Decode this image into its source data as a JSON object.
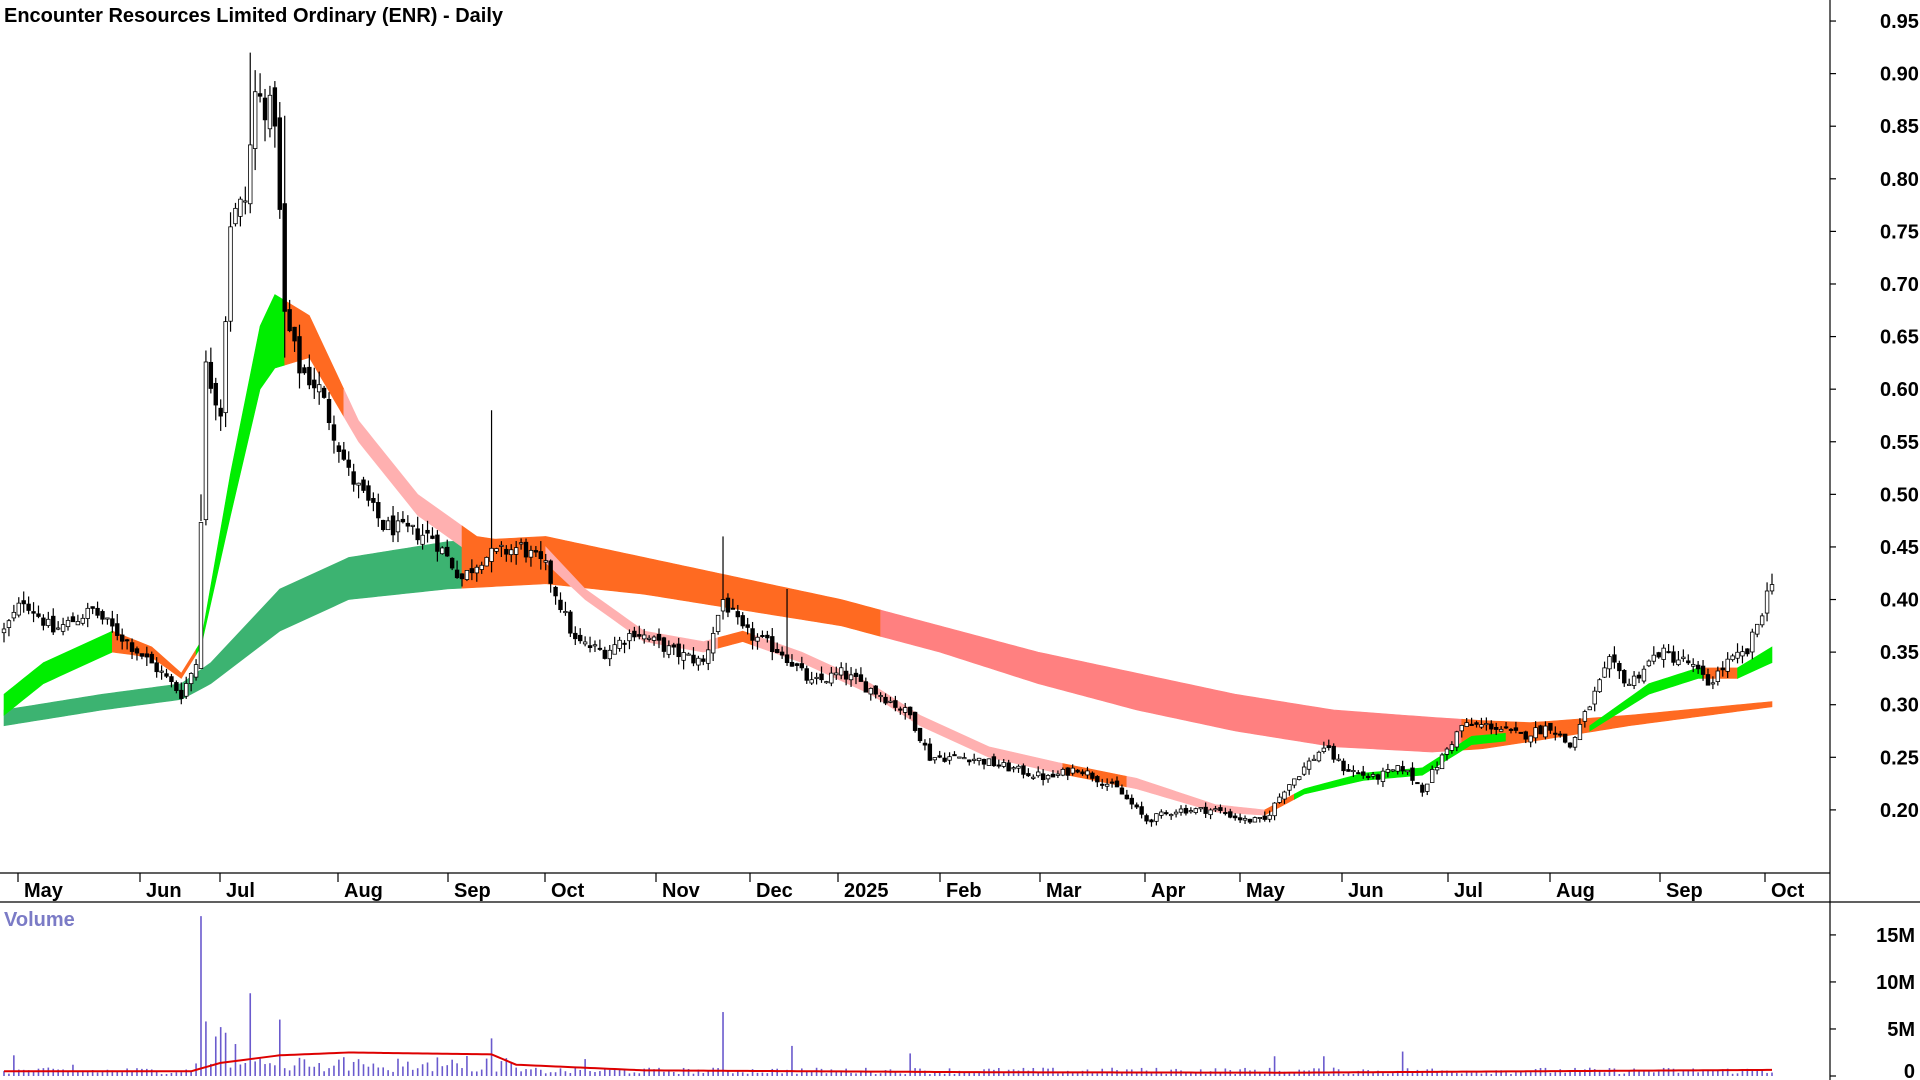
{
  "chart_data": [
    {
      "type": "candlestick",
      "title": "Encounter Resources Limited Ordinary (ENR) - Daily",
      "ylim": [
        0.14,
        0.97
      ],
      "yticks": [
        "0.95",
        "0.90",
        "0.85",
        "0.80",
        "0.75",
        "0.70",
        "0.65",
        "0.60",
        "0.55",
        "0.50",
        "0.45",
        "0.40",
        "0.35",
        "0.30",
        "0.25",
        "0.20"
      ],
      "xticks": [
        "May",
        "Jun",
        "Jul",
        "Aug",
        "Sep",
        "Oct",
        "Nov",
        "Dec",
        "2025",
        "Feb",
        "Mar",
        "Apr",
        "May",
        "Jun",
        "Jul",
        "Aug",
        "Sep",
        "Oct"
      ],
      "price_anchors": [
        {
          "x": 0,
          "c": 0.37
        },
        {
          "x": 4,
          "c": 0.4
        },
        {
          "x": 10,
          "c": 0.37
        },
        {
          "x": 18,
          "c": 0.39
        },
        {
          "x": 25,
          "c": 0.36
        },
        {
          "x": 32,
          "c": 0.33
        },
        {
          "x": 36,
          "c": 0.31
        },
        {
          "x": 39,
          "c": 0.34
        },
        {
          "x": 41,
          "c": 0.62
        },
        {
          "x": 44,
          "c": 0.58
        },
        {
          "x": 46,
          "c": 0.76
        },
        {
          "x": 49,
          "c": 0.78
        },
        {
          "x": 51,
          "c": 0.88
        },
        {
          "x": 55,
          "c": 0.86
        },
        {
          "x": 57,
          "c": 0.67
        },
        {
          "x": 60,
          "c": 0.62
        },
        {
          "x": 64,
          "c": 0.6
        },
        {
          "x": 70,
          "c": 0.52
        },
        {
          "x": 77,
          "c": 0.47
        },
        {
          "x": 87,
          "c": 0.46
        },
        {
          "x": 93,
          "c": 0.42
        },
        {
          "x": 97,
          "c": 0.44
        },
        {
          "x": 105,
          "c": 0.45
        },
        {
          "x": 110,
          "c": 0.43
        },
        {
          "x": 116,
          "c": 0.36
        },
        {
          "x": 122,
          "c": 0.35
        },
        {
          "x": 128,
          "c": 0.37
        },
        {
          "x": 136,
          "c": 0.35
        },
        {
          "x": 142,
          "c": 0.34
        },
        {
          "x": 146,
          "c": 0.4
        },
        {
          "x": 150,
          "c": 0.37
        },
        {
          "x": 158,
          "c": 0.35
        },
        {
          "x": 164,
          "c": 0.32
        },
        {
          "x": 170,
          "c": 0.33
        },
        {
          "x": 178,
          "c": 0.31
        },
        {
          "x": 184,
          "c": 0.29
        },
        {
          "x": 188,
          "c": 0.25
        },
        {
          "x": 196,
          "c": 0.25
        },
        {
          "x": 204,
          "c": 0.24
        },
        {
          "x": 212,
          "c": 0.23
        },
        {
          "x": 218,
          "c": 0.24
        },
        {
          "x": 226,
          "c": 0.22
        },
        {
          "x": 232,
          "c": 0.19
        },
        {
          "x": 238,
          "c": 0.2
        },
        {
          "x": 246,
          "c": 0.2
        },
        {
          "x": 252,
          "c": 0.19
        },
        {
          "x": 256,
          "c": 0.19
        },
        {
          "x": 260,
          "c": 0.22
        },
        {
          "x": 264,
          "c": 0.24
        },
        {
          "x": 268,
          "c": 0.26
        },
        {
          "x": 272,
          "c": 0.24
        },
        {
          "x": 278,
          "c": 0.23
        },
        {
          "x": 284,
          "c": 0.24
        },
        {
          "x": 288,
          "c": 0.22
        },
        {
          "x": 292,
          "c": 0.25
        },
        {
          "x": 296,
          "c": 0.28
        },
        {
          "x": 302,
          "c": 0.28
        },
        {
          "x": 308,
          "c": 0.27
        },
        {
          "x": 314,
          "c": 0.28
        },
        {
          "x": 318,
          "c": 0.26
        },
        {
          "x": 322,
          "c": 0.3
        },
        {
          "x": 326,
          "c": 0.34
        },
        {
          "x": 330,
          "c": 0.32
        },
        {
          "x": 336,
          "c": 0.35
        },
        {
          "x": 342,
          "c": 0.34
        },
        {
          "x": 346,
          "c": 0.32
        },
        {
          "x": 350,
          "c": 0.34
        },
        {
          "x": 354,
          "c": 0.35
        },
        {
          "x": 357,
          "c": 0.39
        },
        {
          "x": 359,
          "c": 0.42
        }
      ],
      "ribbons": [
        {
          "name": "short-term average ribbon",
          "top": [
            {
              "x": 0,
              "v": 0.31
            },
            {
              "x": 8,
              "v": 0.34
            },
            {
              "x": 22,
              "v": 0.37
            },
            {
              "x": 30,
              "v": 0.355
            },
            {
              "x": 36,
              "v": 0.33
            },
            {
              "x": 40,
              "v": 0.36
            },
            {
              "x": 46,
              "v": 0.52
            },
            {
              "x": 52,
              "v": 0.66
            },
            {
              "x": 55,
              "v": 0.69
            },
            {
              "x": 62,
              "v": 0.67
            },
            {
              "x": 72,
              "v": 0.57
            },
            {
              "x": 84,
              "v": 0.5
            },
            {
              "x": 96,
              "v": 0.46
            },
            {
              "x": 110,
              "v": 0.45
            },
            {
              "x": 118,
              "v": 0.41
            },
            {
              "x": 130,
              "v": 0.37
            },
            {
              "x": 142,
              "v": 0.36
            },
            {
              "x": 150,
              "v": 0.37
            },
            {
              "x": 162,
              "v": 0.35
            },
            {
              "x": 176,
              "v": 0.32
            },
            {
              "x": 186,
              "v": 0.29
            },
            {
              "x": 200,
              "v": 0.26
            },
            {
              "x": 214,
              "v": 0.245
            },
            {
              "x": 230,
              "v": 0.23
            },
            {
              "x": 246,
              "v": 0.205
            },
            {
              "x": 256,
              "v": 0.2
            },
            {
              "x": 264,
              "v": 0.22
            },
            {
              "x": 276,
              "v": 0.235
            },
            {
              "x": 288,
              "v": 0.24
            },
            {
              "x": 298,
              "v": 0.27
            },
            {
              "x": 310,
              "v": 0.275
            },
            {
              "x": 322,
              "v": 0.28
            },
            {
              "x": 334,
              "v": 0.32
            },
            {
              "x": 344,
              "v": 0.335
            },
            {
              "x": 352,
              "v": 0.335
            },
            {
              "x": 359,
              "v": 0.355
            }
          ],
          "bottom": [
            {
              "x": 0,
              "v": 0.29
            },
            {
              "x": 8,
              "v": 0.32
            },
            {
              "x": 22,
              "v": 0.35
            },
            {
              "x": 30,
              "v": 0.345
            },
            {
              "x": 36,
              "v": 0.325
            },
            {
              "x": 40,
              "v": 0.355
            },
            {
              "x": 46,
              "v": 0.48
            },
            {
              "x": 52,
              "v": 0.6
            },
            {
              "x": 55,
              "v": 0.62
            },
            {
              "x": 62,
              "v": 0.63
            },
            {
              "x": 72,
              "v": 0.55
            },
            {
              "x": 84,
              "v": 0.48
            },
            {
              "x": 96,
              "v": 0.44
            },
            {
              "x": 110,
              "v": 0.435
            },
            {
              "x": 118,
              "v": 0.4
            },
            {
              "x": 130,
              "v": 0.36
            },
            {
              "x": 142,
              "v": 0.35
            },
            {
              "x": 150,
              "v": 0.36
            },
            {
              "x": 162,
              "v": 0.34
            },
            {
              "x": 176,
              "v": 0.31
            },
            {
              "x": 186,
              "v": 0.28
            },
            {
              "x": 200,
              "v": 0.25
            },
            {
              "x": 214,
              "v": 0.235
            },
            {
              "x": 230,
              "v": 0.22
            },
            {
              "x": 246,
              "v": 0.198
            },
            {
              "x": 256,
              "v": 0.195
            },
            {
              "x": 264,
              "v": 0.215
            },
            {
              "x": 276,
              "v": 0.228
            },
            {
              "x": 288,
              "v": 0.233
            },
            {
              "x": 298,
              "v": 0.262
            },
            {
              "x": 310,
              "v": 0.268
            },
            {
              "x": 322,
              "v": 0.275
            },
            {
              "x": 334,
              "v": 0.31
            },
            {
              "x": 344,
              "v": 0.325
            },
            {
              "x": 352,
              "v": 0.325
            },
            {
              "x": 359,
              "v": 0.34
            }
          ],
          "colors": [
            {
              "from": 0,
              "to": 22,
              "color": "#00ee00"
            },
            {
              "from": 22,
              "to": 39,
              "color": "#ff6a21"
            },
            {
              "from": 39,
              "to": 57,
              "color": "#00ee00"
            },
            {
              "from": 57,
              "to": 69,
              "color": "#ff6a21"
            },
            {
              "from": 69,
              "to": 93,
              "color": "#ffb0b0"
            },
            {
              "from": 93,
              "to": 110,
              "color": "#ff6a21"
            },
            {
              "from": 110,
              "to": 145,
              "color": "#ffb0b0"
            },
            {
              "from": 145,
              "to": 152,
              "color": "#ff6a21"
            },
            {
              "from": 152,
              "to": 215,
              "color": "#ffb0b0"
            },
            {
              "from": 215,
              "to": 228,
              "color": "#ff6a21"
            },
            {
              "from": 228,
              "to": 256,
              "color": "#ffb0b0"
            },
            {
              "from": 256,
              "to": 262,
              "color": "#ff6a21"
            },
            {
              "from": 262,
              "to": 305,
              "color": "#00ee00"
            },
            {
              "from": 305,
              "to": 322,
              "color": "#ff6a21"
            },
            {
              "from": 322,
              "to": 345,
              "color": "#00ee00"
            },
            {
              "from": 345,
              "to": 352,
              "color": "#ff6a21"
            },
            {
              "from": 352,
              "to": 359,
              "color": "#00ee00"
            }
          ]
        },
        {
          "name": "long-term average ribbon",
          "top": [
            {
              "x": 0,
              "v": 0.295
            },
            {
              "x": 20,
              "v": 0.31
            },
            {
              "x": 36,
              "v": 0.32
            },
            {
              "x": 42,
              "v": 0.34
            },
            {
              "x": 56,
              "v": 0.41
            },
            {
              "x": 70,
              "v": 0.44
            },
            {
              "x": 90,
              "v": 0.455
            },
            {
              "x": 110,
              "v": 0.46
            },
            {
              "x": 130,
              "v": 0.44
            },
            {
              "x": 150,
              "v": 0.42
            },
            {
              "x": 170,
              "v": 0.4
            },
            {
              "x": 190,
              "v": 0.375
            },
            {
              "x": 210,
              "v": 0.35
            },
            {
              "x": 230,
              "v": 0.33
            },
            {
              "x": 250,
              "v": 0.31
            },
            {
              "x": 270,
              "v": 0.295
            },
            {
              "x": 290,
              "v": 0.288
            },
            {
              "x": 300,
              "v": 0.285
            },
            {
              "x": 310,
              "v": 0.283
            },
            {
              "x": 330,
              "v": 0.29
            },
            {
              "x": 359,
              "v": 0.303
            }
          ],
          "bottom": [
            {
              "x": 0,
              "v": 0.28
            },
            {
              "x": 20,
              "v": 0.295
            },
            {
              "x": 36,
              "v": 0.305
            },
            {
              "x": 42,
              "v": 0.32
            },
            {
              "x": 56,
              "v": 0.37
            },
            {
              "x": 70,
              "v": 0.4
            },
            {
              "x": 90,
              "v": 0.41
            },
            {
              "x": 110,
              "v": 0.415
            },
            {
              "x": 130,
              "v": 0.405
            },
            {
              "x": 150,
              "v": 0.39
            },
            {
              "x": 170,
              "v": 0.375
            },
            {
              "x": 190,
              "v": 0.35
            },
            {
              "x": 210,
              "v": 0.32
            },
            {
              "x": 230,
              "v": 0.295
            },
            {
              "x": 250,
              "v": 0.275
            },
            {
              "x": 270,
              "v": 0.26
            },
            {
              "x": 290,
              "v": 0.255
            },
            {
              "x": 300,
              "v": 0.258
            },
            {
              "x": 310,
              "v": 0.265
            },
            {
              "x": 330,
              "v": 0.28
            },
            {
              "x": 359,
              "v": 0.298
            }
          ],
          "colors": [
            {
              "from": 0,
              "to": 93,
              "color": "#3cb371"
            },
            {
              "from": 93,
              "to": 178,
              "color": "#ff6a21"
            },
            {
              "from": 178,
              "to": 296,
              "color": "#ff8080"
            },
            {
              "from": 296,
              "to": 359,
              "color": "#ff6a21"
            }
          ]
        }
      ]
    },
    {
      "type": "bar",
      "title": "Volume",
      "ylim": [
        0,
        18500000
      ],
      "yticks": [
        "15M",
        "10M",
        "5M",
        "0"
      ],
      "volume_average_color": "#dd0000",
      "volume_bar_color": "#6a5acd",
      "volume_spikes": [
        {
          "x": 2,
          "v": 2200000
        },
        {
          "x": 14,
          "v": 1200000
        },
        {
          "x": 40,
          "v": 17000000
        },
        {
          "x": 41,
          "v": 5800000
        },
        {
          "x": 43,
          "v": 4200000
        },
        {
          "x": 44,
          "v": 5200000
        },
        {
          "x": 45,
          "v": 4600000
        },
        {
          "x": 47,
          "v": 3400000
        },
        {
          "x": 50,
          "v": 8800000
        },
        {
          "x": 56,
          "v": 6000000
        },
        {
          "x": 69,
          "v": 2000000
        },
        {
          "x": 99,
          "v": 4000000
        },
        {
          "x": 118,
          "v": 1800000
        },
        {
          "x": 146,
          "v": 6800000
        },
        {
          "x": 160,
          "v": 3200000
        },
        {
          "x": 184,
          "v": 2400000
        },
        {
          "x": 258,
          "v": 2100000
        },
        {
          "x": 268,
          "v": 2100000
        },
        {
          "x": 284,
          "v": 2600000
        }
      ],
      "volume_average": [
        {
          "x": 0,
          "v": 500000
        },
        {
          "x": 38,
          "v": 500000
        },
        {
          "x": 44,
          "v": 1400000
        },
        {
          "x": 56,
          "v": 2200000
        },
        {
          "x": 70,
          "v": 2500000
        },
        {
          "x": 99,
          "v": 2300000
        },
        {
          "x": 104,
          "v": 1200000
        },
        {
          "x": 130,
          "v": 600000
        },
        {
          "x": 200,
          "v": 400000
        },
        {
          "x": 260,
          "v": 350000
        },
        {
          "x": 359,
          "v": 650000
        }
      ]
    }
  ]
}
